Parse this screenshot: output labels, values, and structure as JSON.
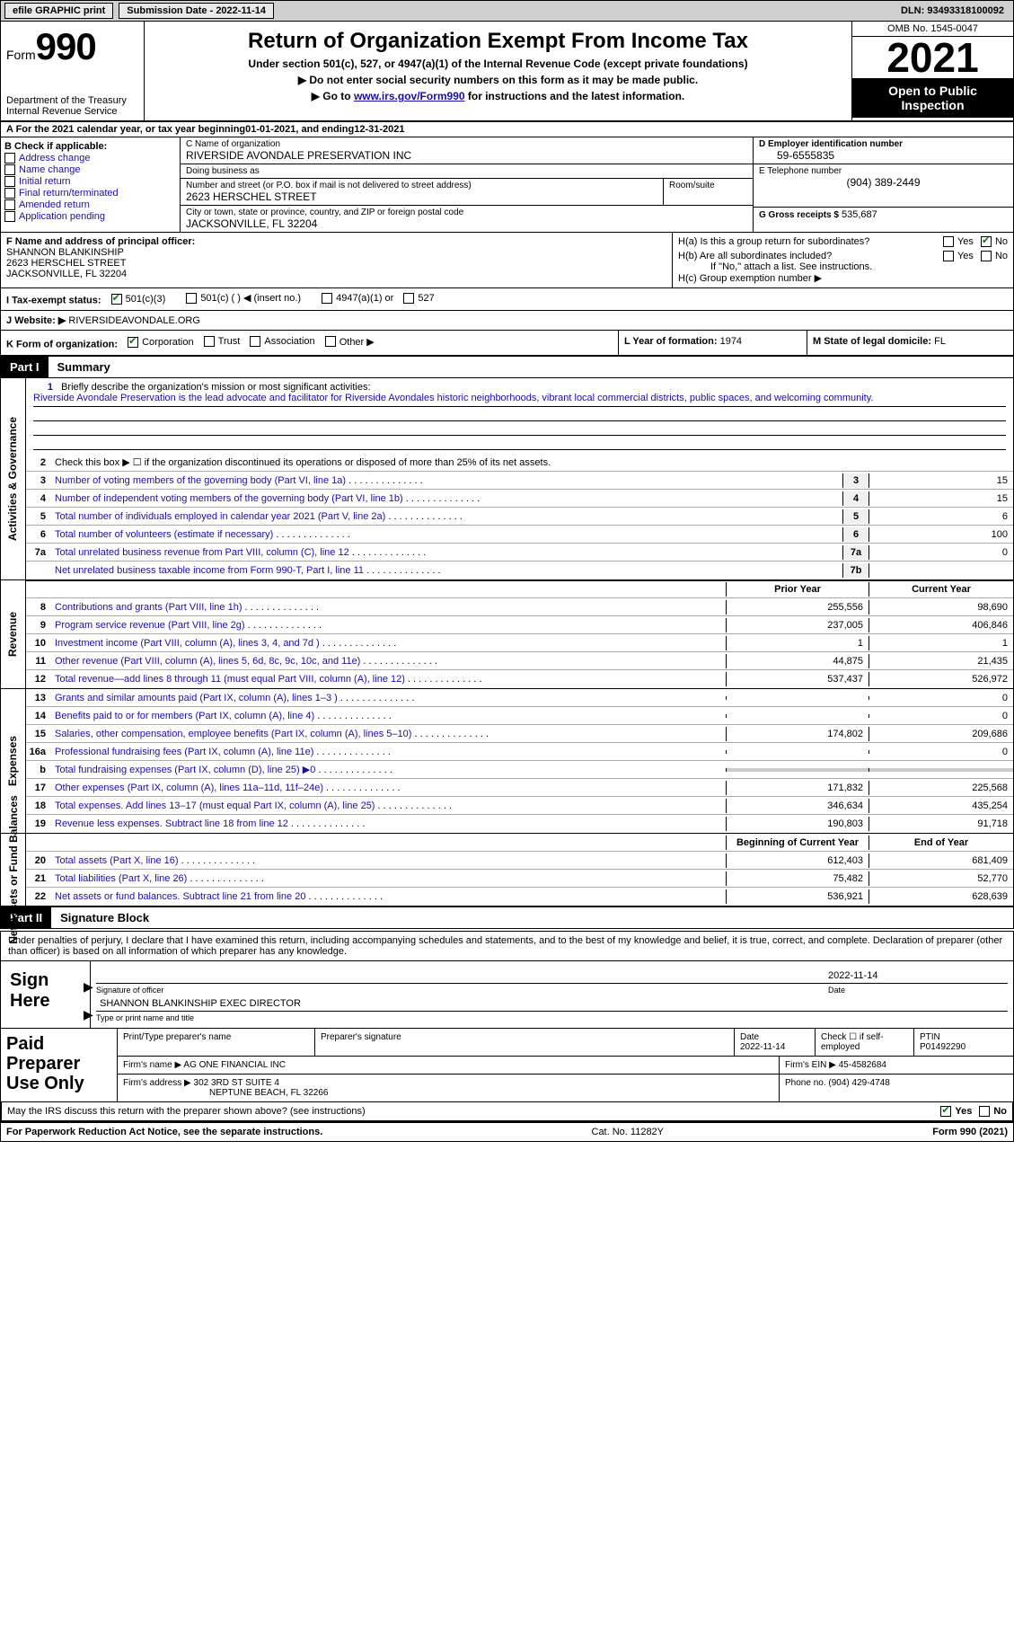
{
  "topbar": {
    "efile": "efile GRAPHIC print",
    "submission_label": "Submission Date - 2022-11-14",
    "dln": "DLN: 93493318100092"
  },
  "header": {
    "form_label": "Form",
    "form_number": "990",
    "dept": "Department of the Treasury\nInternal Revenue Service",
    "title": "Return of Organization Exempt From Income Tax",
    "subtitle1": "Under section 501(c), 527, or 4947(a)(1) of the Internal Revenue Code (except private foundations)",
    "subtitle2": "Do not enter social security numbers on this form as it may be made public.",
    "subtitle3_pre": "Go to ",
    "subtitle3_link": "www.irs.gov/Form990",
    "subtitle3_post": " for instructions and the latest information.",
    "omb": "OMB No. 1545-0047",
    "year": "2021",
    "inspect": "Open to Public Inspection"
  },
  "A": {
    "text_pre": "A For the 2021 calendar year, or tax year beginning ",
    "begin": "01-01-2021",
    "mid": "   , and ending ",
    "end": "12-31-2021"
  },
  "B": {
    "label": "B Check if applicable:",
    "opts": [
      "Address change",
      "Name change",
      "Initial return",
      "Final return/terminated",
      "Amended return",
      "Application pending"
    ]
  },
  "C": {
    "name_label": "C Name of organization",
    "name": "RIVERSIDE AVONDALE PRESERVATION INC",
    "dba_label": "Doing business as",
    "dba": "",
    "street_label": "Number and street (or P.O. box if mail is not delivered to street address)",
    "street": "2623 HERSCHEL STREET",
    "room_label": "Room/suite",
    "room": "",
    "city_label": "City or town, state or province, country, and ZIP or foreign postal code",
    "city": "JACKSONVILLE, FL  32204"
  },
  "D": {
    "ein_label": "D Employer identification number",
    "ein": "59-6555835",
    "tel_label": "E Telephone number",
    "tel": "(904) 389-2449",
    "gross_label": "G Gross receipts $",
    "gross": "535,687"
  },
  "F": {
    "label": "F  Name and address of principal officer:",
    "name": "SHANNON BLANKINSHIP",
    "addr1": "2623 HERSCHEL STREET",
    "addr2": "JACKSONVILLE, FL  32204"
  },
  "H": {
    "a_label": "H(a)  Is this a group return for subordinates?",
    "b_label": "H(b)  Are all subordinates included?",
    "b_note": "If \"No,\" attach a list. See instructions.",
    "c_label": "H(c)  Group exemption number ▶",
    "yes": "Yes",
    "no": "No"
  },
  "I": {
    "label": "I    Tax-exempt status:",
    "opt1": "501(c)(3)",
    "opt2": "501(c) (   ) ◀ (insert no.)",
    "opt3": "4947(a)(1) or",
    "opt4": "527"
  },
  "J": {
    "label": "J   Website: ▶",
    "value": "RIVERSIDEAVONDALE.ORG"
  },
  "K": {
    "label": "K Form of organization:",
    "opts": [
      "Corporation",
      "Trust",
      "Association",
      "Other ▶"
    ],
    "L_label": "L Year of formation:",
    "L_val": "1974",
    "M_label": "M State of legal domicile:",
    "M_val": "FL"
  },
  "part1": {
    "num": "Part I",
    "name": "Summary",
    "activities_label": "Activities & Governance",
    "revenue_label": "Revenue",
    "expenses_label": "Expenses",
    "netassets_label": "Net Assets or Fund Balances",
    "line1_q": "Briefly describe the organization's mission or most significant activities:",
    "line1_a": "Riverside Avondale Preservation is the lead advocate and facilitator for Riverside Avondales historic neighborhoods, vibrant local commercial districts, public spaces, and welcoming community.",
    "line2": "Check this box ▶ ☐  if the organization discontinued its operations or disposed of more than 25% of its net assets.",
    "lines_gov": [
      {
        "n": "3",
        "t": "Number of voting members of the governing body (Part VI, line 1a)",
        "box": "3",
        "v": "15"
      },
      {
        "n": "4",
        "t": "Number of independent voting members of the governing body (Part VI, line 1b)",
        "box": "4",
        "v": "15"
      },
      {
        "n": "5",
        "t": "Total number of individuals employed in calendar year 2021 (Part V, line 2a)",
        "box": "5",
        "v": "6"
      },
      {
        "n": "6",
        "t": "Total number of volunteers (estimate if necessary)",
        "box": "6",
        "v": "100"
      },
      {
        "n": "7a",
        "t": "Total unrelated business revenue from Part VIII, column (C), line 12",
        "box": "7a",
        "v": "0"
      },
      {
        "n": "",
        "t": "Net unrelated business taxable income from Form 990-T, Part I, line 11",
        "box": "7b",
        "v": ""
      }
    ],
    "py_label": "Prior Year",
    "cy_label": "Current Year",
    "lines_rev": [
      {
        "n": "8",
        "t": "Contributions and grants (Part VIII, line 1h)",
        "py": "255,556",
        "cy": "98,690"
      },
      {
        "n": "9",
        "t": "Program service revenue (Part VIII, line 2g)",
        "py": "237,005",
        "cy": "406,846"
      },
      {
        "n": "10",
        "t": "Investment income (Part VIII, column (A), lines 3, 4, and 7d )",
        "py": "1",
        "cy": "1"
      },
      {
        "n": "11",
        "t": "Other revenue (Part VIII, column (A), lines 5, 6d, 8c, 9c, 10c, and 11e)",
        "py": "44,875",
        "cy": "21,435"
      },
      {
        "n": "12",
        "t": "Total revenue—add lines 8 through 11 (must equal Part VIII, column (A), line 12)",
        "py": "537,437",
        "cy": "526,972"
      }
    ],
    "lines_exp": [
      {
        "n": "13",
        "t": "Grants and similar amounts paid (Part IX, column (A), lines 1–3 )",
        "py": "",
        "cy": "0"
      },
      {
        "n": "14",
        "t": "Benefits paid to or for members (Part IX, column (A), line 4)",
        "py": "",
        "cy": "0"
      },
      {
        "n": "15",
        "t": "Salaries, other compensation, employee benefits (Part IX, column (A), lines 5–10)",
        "py": "174,802",
        "cy": "209,686"
      },
      {
        "n": "16a",
        "t": "Professional fundraising fees (Part IX, column (A), line 11e)",
        "py": "",
        "cy": "0"
      },
      {
        "n": "b",
        "t": "Total fundraising expenses (Part IX, column (D), line 25) ▶0",
        "py": "shade",
        "cy": "shade"
      },
      {
        "n": "17",
        "t": "Other expenses (Part IX, column (A), lines 11a–11d, 11f–24e)",
        "py": "171,832",
        "cy": "225,568"
      },
      {
        "n": "18",
        "t": "Total expenses. Add lines 13–17 (must equal Part IX, column (A), line 25)",
        "py": "346,634",
        "cy": "435,254"
      },
      {
        "n": "19",
        "t": "Revenue less expenses. Subtract line 18 from line 12",
        "py": "190,803",
        "cy": "91,718"
      }
    ],
    "bcy_label": "Beginning of Current Year",
    "eoy_label": "End of Year",
    "lines_net": [
      {
        "n": "20",
        "t": "Total assets (Part X, line 16)",
        "py": "612,403",
        "cy": "681,409"
      },
      {
        "n": "21",
        "t": "Total liabilities (Part X, line 26)",
        "py": "75,482",
        "cy": "52,770"
      },
      {
        "n": "22",
        "t": "Net assets or fund balances. Subtract line 21 from line 20",
        "py": "536,921",
        "cy": "628,639"
      }
    ]
  },
  "part2": {
    "num": "Part II",
    "name": "Signature Block",
    "decl": "Under penalties of perjury, I declare that I have examined this return, including accompanying schedules and statements, and to the best of my knowledge and belief, it is true, correct, and complete. Declaration of preparer (other than officer) is based on all information of which preparer has any knowledge.",
    "sign_here": "Sign Here",
    "sig_officer": "Signature of officer",
    "sig_date_label": "Date",
    "sig_date": "2022-11-14",
    "sig_name": "SHANNON BLANKINSHIP  EXEC DIRECTOR",
    "sig_name_label": "Type or print name and title",
    "paid_label": "Paid Preparer Use Only",
    "prep_name_label": "Print/Type preparer's name",
    "prep_name": "",
    "prep_sig_label": "Preparer's signature",
    "prep_date_label": "Date",
    "prep_date": "2022-11-14",
    "prep_self_label": "Check ☐ if self-employed",
    "ptin_label": "PTIN",
    "ptin": "P01492290",
    "firm_name_label": "Firm's name    ▶",
    "firm_name": "AG ONE FINANCIAL INC",
    "firm_ein_label": "Firm's EIN ▶",
    "firm_ein": "45-4582684",
    "firm_addr_label": "Firm's address ▶",
    "firm_addr1": "302 3RD ST SUITE 4",
    "firm_addr2": "NEPTUNE BEACH, FL  32266",
    "firm_phone_label": "Phone no.",
    "firm_phone": "(904) 429-4748",
    "may": "May the IRS discuss this return with the preparer shown above? (see instructions)"
  },
  "footer": {
    "left": "For Paperwork Reduction Act Notice, see the separate instructions.",
    "mid": "Cat. No. 11282Y",
    "right": "Form 990 (2021)"
  }
}
